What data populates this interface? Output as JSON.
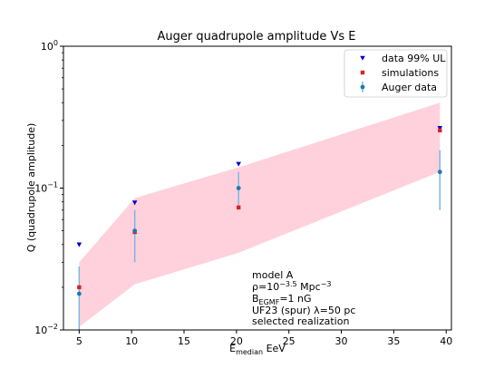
{
  "chart_data": {
    "type": "scatter",
    "title": "Auger quadrupole amplitude Vs E",
    "xlabel": {
      "main": "E",
      "sub": "median",
      "rest": " EeV"
    },
    "ylabel": "Q (quadrupole amplitude)",
    "xlim": [
      3.5,
      40.5
    ],
    "ylim": [
      0.01,
      1.0
    ],
    "yscale": "log",
    "x_ticks": [
      5,
      10,
      15,
      20,
      25,
      30,
      35,
      40
    ],
    "y_ticks": [
      {
        "value": 0.01,
        "base": "10",
        "exp": "−2"
      },
      {
        "value": 0.1,
        "base": "10",
        "exp": "−1"
      },
      {
        "value": 1.0,
        "base": "10",
        "exp": "0"
      }
    ],
    "grid": false,
    "legend_position": "top-right",
    "band": {
      "color": "#ffd1dc",
      "x": [
        5,
        10.3,
        20.2,
        39.4
      ],
      "upper": [
        0.03,
        0.085,
        0.14,
        0.4
      ],
      "lower": [
        0.0105,
        0.021,
        0.035,
        0.13
      ]
    },
    "series": [
      {
        "name": "data 99% UL",
        "marker": "triangle-down",
        "color": "#0000cc",
        "x": [
          5,
          10.3,
          20.2,
          39.4
        ],
        "y": [
          0.04,
          0.079,
          0.148,
          0.265
        ]
      },
      {
        "name": "simulations",
        "marker": "square",
        "color": "#dd2222",
        "x": [
          5,
          10.3,
          20.2,
          39.4
        ],
        "y": [
          0.02,
          0.049,
          0.073,
          0.255
        ]
      },
      {
        "name": "Auger data",
        "marker": "circle-errorbar",
        "color": "#1f77b4",
        "errcolor": "#7ab8e0",
        "x": [
          5,
          10.3,
          20.2,
          39.4
        ],
        "y": [
          0.018,
          0.05,
          0.1,
          0.13
        ],
        "yerr_low": [
          0.01,
          0.03,
          0.075,
          0.07
        ],
        "yerr_high": [
          0.028,
          0.07,
          0.13,
          0.185
        ]
      }
    ],
    "annotation": {
      "line1": "model A",
      "line2": {
        "pre": "ρ=10",
        "sup": "−3.5",
        "post": " Mpc",
        "sup2": "−3"
      },
      "line3": {
        "pre": "B",
        "sub": "EGMF",
        "post": "=1 nG"
      },
      "line4": "UF23 (spur) λ=50 pc",
      "line5": "selected realization"
    }
  }
}
